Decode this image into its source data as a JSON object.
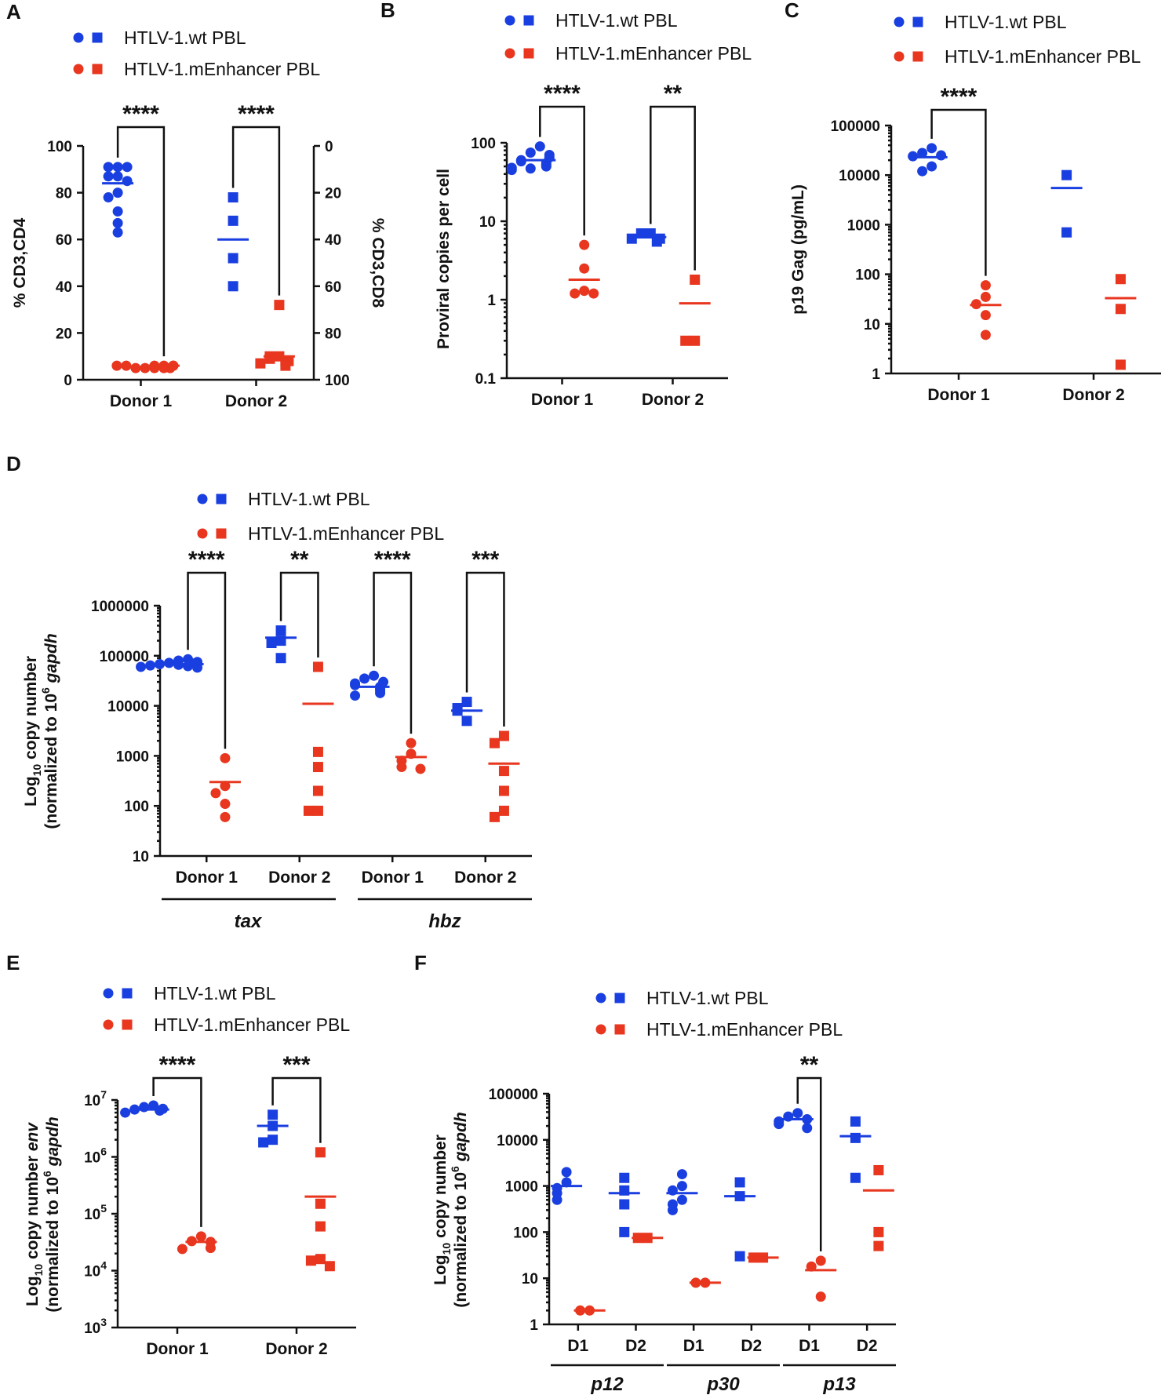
{
  "colors": {
    "wt": "#1a3fe0",
    "menh": "#e8361f"
  },
  "legend": {
    "wt": "HTLV-1.wt PBL",
    "menh": "HTLV-1.mEnhancer PBL"
  },
  "chart_data": [
    {
      "panel": "A",
      "type": "scatter",
      "scale": "linear",
      "ylabel": "% CD3,CD4",
      "y2label": "% CD3,CD8",
      "ylim": [
        0,
        100
      ],
      "ticks": [
        "0",
        "20",
        "40",
        "60",
        "80",
        "100"
      ],
      "y2ticks": [
        "100",
        "80",
        "60",
        "40",
        "20",
        "0"
      ],
      "groups": [
        {
          "label": "Donor 1",
          "wt": [
            91,
            91,
            91,
            87,
            87,
            85,
            80,
            78,
            72,
            67,
            63
          ],
          "wt_mean": 84,
          "menh": [
            6,
            6,
            6,
            5,
            5,
            5,
            5,
            6,
            5,
            6,
            6
          ],
          "menh_mean": 6,
          "sig": "****"
        },
        {
          "label": "Donor 2",
          "wt": [
            78,
            68,
            52,
            40
          ],
          "wt_mean": 60,
          "menh": [
            32,
            10,
            9,
            8,
            7,
            8,
            6,
            9,
            10
          ],
          "menh_mean": 10,
          "sig": "****"
        }
      ]
    },
    {
      "panel": "B",
      "type": "scatter",
      "scale": "log",
      "ylabel": "Proviral copies per cell",
      "ylim": [
        0.1,
        100
      ],
      "ticks": [
        "0.1",
        "1",
        "10",
        "100"
      ],
      "groups": [
        {
          "label": "Donor 1",
          "wt": [
            90,
            75,
            70,
            65,
            60,
            58,
            55,
            52,
            50,
            48,
            47,
            45
          ],
          "wt_mean": 60,
          "menh": [
            5,
            2.5,
            1.3,
            1.2,
            1.2
          ],
          "menh_mean": 1.8,
          "sig": "****"
        },
        {
          "label": "Donor 2",
          "wt": [
            7,
            7,
            6,
            6,
            5.5
          ],
          "wt_mean": 6.3,
          "menh": [
            1.8,
            0.3,
            0.3
          ],
          "menh_mean": 0.9,
          "sig": "**"
        }
      ]
    },
    {
      "panel": "C",
      "type": "scatter",
      "scale": "log",
      "ylabel": "p19 Gag (pg/mL)",
      "ylim": [
        1,
        100000
      ],
      "ticks": [
        "1",
        "10",
        "100",
        "1000",
        "10000",
        "100000"
      ],
      "groups": [
        {
          "label": "Donor 1",
          "wt": [
            35000,
            28000,
            25000,
            24000,
            15000,
            12000
          ],
          "wt_mean": 23000,
          "menh": [
            60,
            35,
            25,
            15,
            6
          ],
          "menh_mean": 24,
          "sig": "****"
        },
        {
          "label": "Donor 2",
          "wt": [
            10000,
            700
          ],
          "wt_mean": 5500,
          "menh": [
            80,
            20,
            1.5
          ],
          "menh_mean": 33,
          "sig": ""
        }
      ]
    },
    {
      "panel": "D",
      "type": "scatter",
      "scale": "log",
      "ylabel_line1": "Log",
      "ylabel_sub": "10",
      "ylabel_rest": " copy number",
      "ylabel_line2": "(normalized to 10",
      "ylabel_sup": "6",
      "ylabel_gene": " gapdh",
      "ylim": [
        10,
        1000000
      ],
      "ticks": [
        "10",
        "100",
        "1000",
        "10000",
        "100000",
        "1000000"
      ],
      "gene_groups": [
        "tax",
        "hbz"
      ],
      "groups": [
        {
          "label": "Donor 1",
          "wt": [
            85000,
            80000,
            75000,
            72000,
            70000,
            68000,
            66000,
            64000,
            62000,
            60000,
            58000
          ],
          "wt_mean": 68000,
          "menh": [
            900,
            250,
            180,
            110,
            60
          ],
          "menh_mean": 300,
          "sig": "****"
        },
        {
          "label": "Donor 2",
          "wt": [
            320000,
            200000,
            180000,
            90000
          ],
          "wt_mean": 230000,
          "menh": [
            60000,
            1200,
            600,
            200,
            80,
            80
          ],
          "menh_mean": 11000,
          "sig": "**"
        },
        {
          "label": "Donor 1",
          "wt": [
            40000,
            35000,
            30000,
            28000,
            26000,
            24000,
            22000,
            20000,
            18000,
            16000
          ],
          "wt_mean": 24000,
          "menh": [
            1800,
            1100,
            800,
            600,
            550
          ],
          "menh_mean": 950,
          "sig": "****"
        },
        {
          "label": "Donor 2",
          "wt": [
            12000,
            9000,
            8000,
            5000
          ],
          "wt_mean": 8000,
          "menh": [
            2500,
            1800,
            500,
            200,
            80,
            60
          ],
          "menh_mean": 700,
          "sig": "***"
        }
      ]
    },
    {
      "panel": "E",
      "type": "scatter",
      "scale": "log",
      "ylabel_line1": "Log",
      "ylabel_sub": "10",
      "ylabel_rest": " copy number ",
      "ylabel_gene1": "env",
      "ylabel_line2": "(normalized to 10",
      "ylabel_sup": "6",
      "ylabel_gene": " gapdh",
      "ylim": [
        1000,
        10000000
      ],
      "ticks": [
        "3",
        "4",
        "5",
        "6",
        "7"
      ],
      "groups": [
        {
          "label": "Donor 1",
          "wt": [
            8000000,
            7500000,
            7000000,
            6800000,
            6500000,
            6000000
          ],
          "wt_mean": 6800000,
          "menh": [
            40000,
            33000,
            32000,
            25000,
            24000
          ],
          "menh_mean": 32000,
          "sig": "****"
        },
        {
          "label": "Donor 2",
          "wt": [
            5500000,
            3500000,
            2000000,
            1800000
          ],
          "wt_mean": 3500000,
          "menh": [
            1200000,
            150000,
            60000,
            16000,
            15000,
            12000
          ],
          "menh_mean": 200000,
          "sig": "***"
        }
      ]
    },
    {
      "panel": "F",
      "type": "scatter",
      "scale": "log",
      "ylabel_line1": "Log",
      "ylabel_sub": "10",
      "ylabel_rest": " copy number",
      "ylabel_line2": "(normalized to 10",
      "ylabel_sup": "6",
      "ylabel_gene": " gapdh",
      "ylim": [
        1,
        100000
      ],
      "ticks": [
        "1",
        "10",
        "100",
        "1000",
        "10000",
        "100000"
      ],
      "gene_groups": [
        "p12",
        "p30",
        "p13"
      ],
      "groups": [
        {
          "label": "D1",
          "wt": [
            2000,
            1200,
            900,
            700,
            500
          ],
          "wt_mean": 1000,
          "menh": [
            2,
            2
          ],
          "menh_mean": 2,
          "sig": ""
        },
        {
          "label": "D2",
          "wt": [
            1500,
            800,
            400,
            100
          ],
          "wt_mean": 700,
          "menh": [
            75,
            75
          ],
          "menh_mean": 75,
          "sig": ""
        },
        {
          "label": "D1",
          "wt": [
            1800,
            1000,
            800,
            500,
            400,
            300
          ],
          "wt_mean": 700,
          "menh": [
            8,
            8
          ],
          "menh_mean": 8,
          "sig": ""
        },
        {
          "label": "D2",
          "wt": [
            1200,
            600,
            30
          ],
          "wt_mean": 600,
          "menh": [
            28,
            28
          ],
          "menh_mean": 28,
          "sig": ""
        },
        {
          "label": "D1",
          "wt": [
            38000,
            32000,
            28000,
            25000,
            22000,
            18000
          ],
          "wt_mean": 28000,
          "menh": [
            24,
            18,
            4
          ],
          "menh_mean": 15,
          "sig": "**"
        },
        {
          "label": "D2",
          "wt": [
            25000,
            11000,
            1500
          ],
          "wt_mean": 12000,
          "menh": [
            2200,
            100,
            50
          ],
          "menh_mean": 800,
          "sig": ""
        }
      ]
    }
  ]
}
